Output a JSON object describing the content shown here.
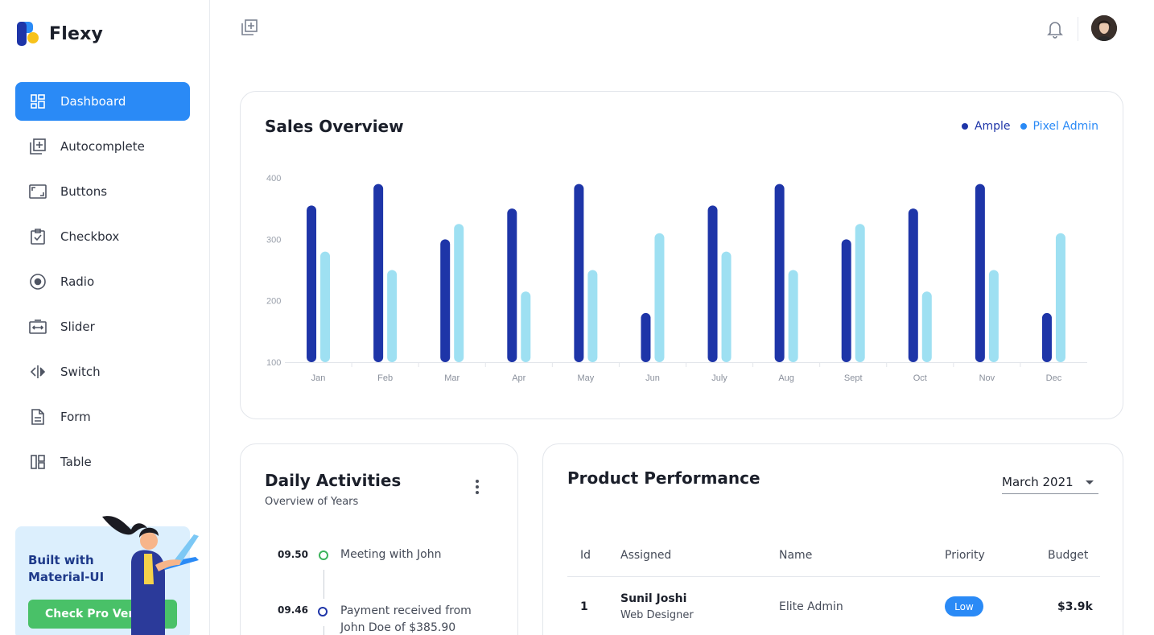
{
  "brand": {
    "name": "Flexy"
  },
  "sidebar": {
    "items": [
      {
        "label": "Dashboard",
        "icon": "dashboard-icon",
        "active": true
      },
      {
        "label": "Autocomplete",
        "icon": "add-box-icon"
      },
      {
        "label": "Buttons",
        "icon": "aspect-ratio-icon"
      },
      {
        "label": "Checkbox",
        "icon": "checkbox-icon"
      },
      {
        "label": "Radio",
        "icon": "radio-icon"
      },
      {
        "label": "Slider",
        "icon": "slider-icon"
      },
      {
        "label": "Switch",
        "icon": "switch-icon"
      },
      {
        "label": "Form",
        "icon": "form-icon"
      },
      {
        "label": "Table",
        "icon": "table-icon"
      }
    ]
  },
  "promo": {
    "text": "Built with Material-UI",
    "button": "Check Pro Version"
  },
  "sales": {
    "title": "Sales Overview",
    "legend": [
      {
        "name": "Ample",
        "color": "#1e35a8"
      },
      {
        "name": "Pixel Admin",
        "color": "#2a8af6"
      }
    ]
  },
  "chart_data": {
    "type": "bar",
    "categories": [
      "Jan",
      "Feb",
      "Mar",
      "Apr",
      "May",
      "Jun",
      "July",
      "Aug",
      "Sept",
      "Oct",
      "Nov",
      "Dec"
    ],
    "series": [
      {
        "name": "Ample",
        "color": "#1e35a8",
        "values": [
          355,
          390,
          300,
          350,
          390,
          180,
          355,
          390,
          300,
          350,
          390,
          180
        ]
      },
      {
        "name": "Pixel Admin",
        "color": "#9ee0f2",
        "values": [
          280,
          250,
          325,
          215,
          250,
          310,
          280,
          250,
          325,
          215,
          250,
          310
        ]
      }
    ],
    "yticks": [
      100,
      200,
      300,
      400
    ],
    "ylim": [
      100,
      400
    ],
    "grid": false,
    "legend": "top-right"
  },
  "daily": {
    "title": "Daily Activities",
    "subtitle": "Overview of Years",
    "activities": [
      {
        "time": "09.50",
        "text": "Meeting with John",
        "color": "#3bb35b"
      },
      {
        "time": "09.46",
        "text": "Payment received from John Doe of $385.90",
        "color": "#1e35a8"
      }
    ]
  },
  "product": {
    "title": "Product Performance",
    "month": "March 2021",
    "columns": [
      "Id",
      "Assigned",
      "Name",
      "Priority",
      "Budget"
    ],
    "rows": [
      {
        "id": "1",
        "assigned": "Sunil Joshi",
        "role": "Web Designer",
        "name": "Elite Admin",
        "priority": "Low",
        "budget": "$3.9k"
      }
    ]
  }
}
